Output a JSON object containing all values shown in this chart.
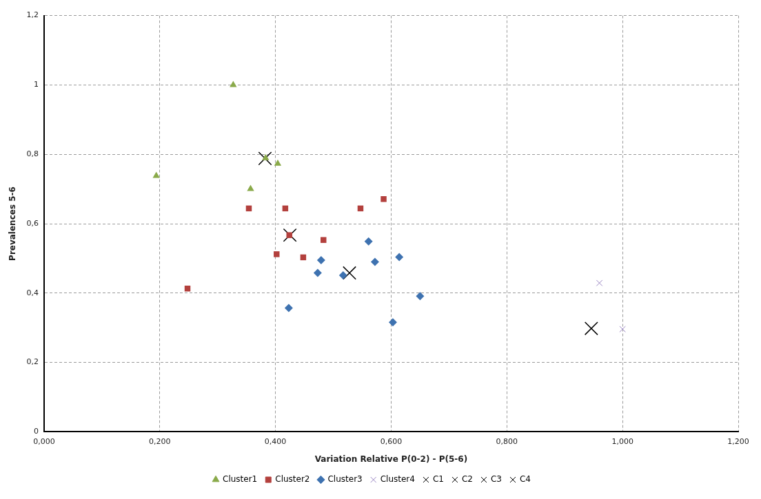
{
  "chart_data": {
    "type": "scatter",
    "xlabel": "Variation Relative P(0-2) - P(5-6)",
    "ylabel": "Prevalences 5-6",
    "xlim": [
      0,
      1.2
    ],
    "ylim": [
      0,
      1.2
    ],
    "xticks": [
      {
        "value": 0,
        "label": "0,000"
      },
      {
        "value": 0.2,
        "label": "0,200"
      },
      {
        "value": 0.4,
        "label": "0,400"
      },
      {
        "value": 0.6,
        "label": "0,600"
      },
      {
        "value": 0.8,
        "label": "0,800"
      },
      {
        "value": 1,
        "label": "1,000"
      },
      {
        "value": 1.2,
        "label": "1,200"
      }
    ],
    "yticks": [
      0,
      {
        "value": 0.2,
        "label": "0,2"
      },
      {
        "value": 0.4,
        "label": "0,4"
      },
      {
        "value": 0.6,
        "label": "0,6"
      },
      {
        "value": 0.8,
        "label": "0,8"
      },
      1,
      {
        "value": 1.2,
        "label": "1,2"
      }
    ],
    "grid": true,
    "legend": "bottom",
    "line_style": "dashed",
    "series": [
      {
        "name": "Cluster1",
        "color": "#8aaa4a",
        "marker": "triangle",
        "x": [
          0.327,
          0.194,
          0.383,
          0.404,
          0.357
        ],
        "values": [
          1.0,
          0.738,
          0.789,
          0.773,
          0.7
        ]
      },
      {
        "name": "Cluster2",
        "color": "#b3403d",
        "marker": "square",
        "x": [
          0.354,
          0.417,
          0.547,
          0.587,
          0.424,
          0.483,
          0.402,
          0.448,
          0.248
        ],
        "values": [
          0.644,
          0.644,
          0.644,
          0.671,
          0.567,
          0.553,
          0.512,
          0.503,
          0.413
        ]
      },
      {
        "name": "Cluster3",
        "color": "#3e72b0",
        "marker": "diamond",
        "x": [
          0.561,
          0.614,
          0.479,
          0.572,
          0.473,
          0.517,
          0.65,
          0.423,
          0.603
        ],
        "values": [
          0.549,
          0.504,
          0.495,
          0.49,
          0.458,
          0.451,
          0.391,
          0.357,
          0.316
        ]
      },
      {
        "name": "Cluster4",
        "color": "#9c88c4",
        "marker": "cross",
        "x": [
          0.96,
          1.0
        ],
        "values": [
          0.429,
          0.296
        ]
      },
      {
        "name": "C1",
        "color": "#000000",
        "marker": "cross",
        "x": [
          0.382
        ],
        "values": [
          0.788
        ]
      },
      {
        "name": "C2",
        "color": "#000000",
        "marker": "cross",
        "x": [
          0.425
        ],
        "values": [
          0.567
        ]
      },
      {
        "name": "C3",
        "color": "#000000",
        "marker": "cross",
        "x": [
          0.528
        ],
        "values": [
          0.458
        ]
      },
      {
        "name": "C4",
        "color": "#000000",
        "marker": "cross",
        "x": [
          0.946
        ],
        "values": [
          0.298
        ]
      }
    ]
  }
}
